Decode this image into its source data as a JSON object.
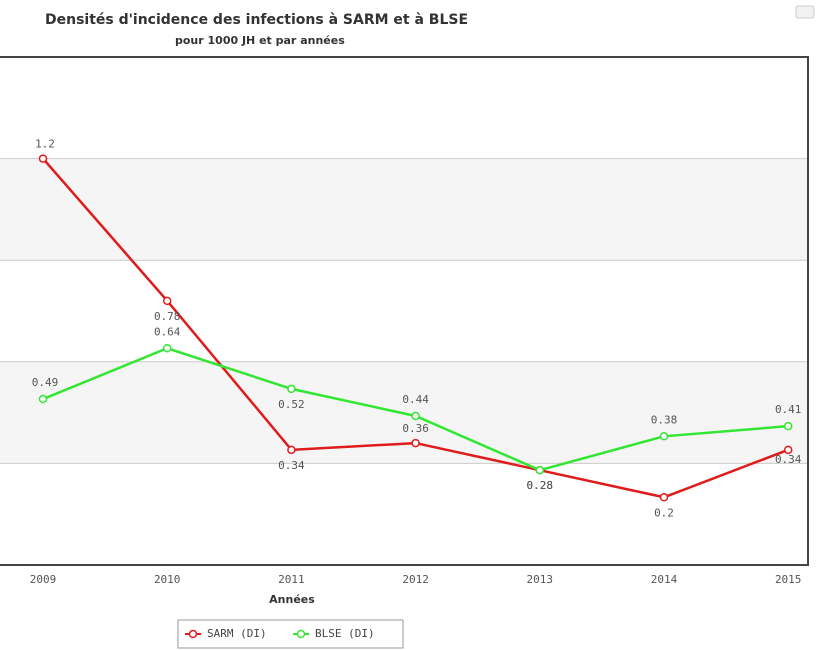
{
  "chart_data": {
    "type": "line",
    "title": "Densités d'incidence des infections à SARM et à BLSE",
    "subtitle": "pour 1000 JH et par années",
    "x_label": "Années",
    "categories": [
      "2009",
      "2010",
      "2011",
      "2012",
      "2013",
      "2014",
      "2015"
    ],
    "series": [
      {
        "name": "SARM (DI)",
        "color": "#e01b1b",
        "values": [
          1.2,
          0.78,
          0.34,
          0.36,
          0.28,
          0.2,
          0.34
        ]
      },
      {
        "name": "BLSE (DI)",
        "color": "#33e633",
        "values": [
          0.49,
          0.64,
          0.52,
          0.44,
          0.28,
          0.38,
          0.41
        ]
      }
    ],
    "ylim": [
      0,
      1.5
    ],
    "yticks": [
      0,
      0.3,
      0.6,
      0.9,
      1.2,
      1.5
    ],
    "grid": true,
    "legend": "bottom"
  }
}
